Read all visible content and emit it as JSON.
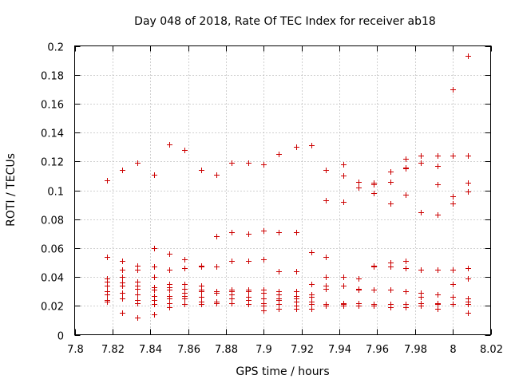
{
  "chart_data": {
    "type": "scatter",
    "title": "Day 048 of 2018, Rate Of TEC Index for receiver ab18",
    "xlabel": "GPS time / hours",
    "ylabel": "ROTI / TECUs",
    "xlim": [
      7.8,
      8.02
    ],
    "ylim": [
      0,
      0.2
    ],
    "grid": true,
    "marker": "+",
    "marker_color": "#cc0000",
    "x_ticks": [
      7.8,
      7.82,
      7.84,
      7.86,
      7.88,
      7.9,
      7.92,
      7.94,
      7.96,
      7.98,
      8.0,
      8.02
    ],
    "x_tick_labels": [
      "7.8",
      "7.82",
      "7.84",
      "7.86",
      "7.88",
      "7.9",
      "7.92",
      "7.94",
      "7.96",
      "7.98",
      "8",
      "8.02"
    ],
    "y_ticks": [
      0,
      0.02,
      0.04,
      0.06,
      0.08,
      0.1,
      0.12,
      0.14,
      0.16,
      0.18,
      0.2
    ],
    "y_tick_labels": [
      "0",
      "0.02",
      "0.04",
      "0.06",
      "0.08",
      "0.1",
      "0.12",
      "0.14",
      "0.16",
      "0.18",
      "0.2"
    ],
    "series": [
      {
        "name": "ROTI",
        "points": [
          [
            7.817,
            0.107
          ],
          [
            7.817,
            0.054
          ],
          [
            7.817,
            0.039
          ],
          [
            7.817,
            0.037
          ],
          [
            7.817,
            0.034
          ],
          [
            7.817,
            0.03
          ],
          [
            7.817,
            0.028
          ],
          [
            7.817,
            0.024
          ],
          [
            7.817,
            0.023
          ],
          [
            7.825,
            0.114
          ],
          [
            7.825,
            0.051
          ],
          [
            7.825,
            0.045
          ],
          [
            7.825,
            0.04
          ],
          [
            7.825,
            0.036
          ],
          [
            7.825,
            0.034
          ],
          [
            7.825,
            0.029
          ],
          [
            7.825,
            0.025
          ],
          [
            7.825,
            0.015
          ],
          [
            7.833,
            0.119
          ],
          [
            7.833,
            0.048
          ],
          [
            7.833,
            0.045
          ],
          [
            7.833,
            0.037
          ],
          [
            7.833,
            0.034
          ],
          [
            7.833,
            0.032
          ],
          [
            7.833,
            0.028
          ],
          [
            7.833,
            0.024
          ],
          [
            7.833,
            0.022
          ],
          [
            7.833,
            0.012
          ],
          [
            7.842,
            0.111
          ],
          [
            7.842,
            0.06
          ],
          [
            7.842,
            0.047
          ],
          [
            7.842,
            0.04
          ],
          [
            7.842,
            0.033
          ],
          [
            7.842,
            0.031
          ],
          [
            7.842,
            0.027
          ],
          [
            7.842,
            0.024
          ],
          [
            7.842,
            0.021
          ],
          [
            7.842,
            0.014
          ],
          [
            7.85,
            0.132
          ],
          [
            7.85,
            0.056
          ],
          [
            7.85,
            0.045
          ],
          [
            7.85,
            0.035
          ],
          [
            7.85,
            0.033
          ],
          [
            7.85,
            0.031
          ],
          [
            7.85,
            0.027
          ],
          [
            7.85,
            0.025
          ],
          [
            7.85,
            0.022
          ],
          [
            7.85,
            0.019
          ],
          [
            7.858,
            0.128
          ],
          [
            7.858,
            0.052
          ],
          [
            7.858,
            0.046
          ],
          [
            7.858,
            0.035
          ],
          [
            7.858,
            0.032
          ],
          [
            7.858,
            0.029
          ],
          [
            7.858,
            0.027
          ],
          [
            7.858,
            0.025
          ],
          [
            7.858,
            0.021
          ],
          [
            7.867,
            0.114
          ],
          [
            7.867,
            0.048
          ],
          [
            7.867,
            0.047
          ],
          [
            7.867,
            0.034
          ],
          [
            7.867,
            0.031
          ],
          [
            7.867,
            0.03
          ],
          [
            7.867,
            0.026
          ],
          [
            7.867,
            0.023
          ],
          [
            7.867,
            0.021
          ],
          [
            7.875,
            0.111
          ],
          [
            7.875,
            0.068
          ],
          [
            7.875,
            0.047
          ],
          [
            7.875,
            0.03
          ],
          [
            7.875,
            0.029
          ],
          [
            7.875,
            0.023
          ],
          [
            7.875,
            0.022
          ],
          [
            7.883,
            0.119
          ],
          [
            7.883,
            0.071
          ],
          [
            7.883,
            0.051
          ],
          [
            7.883,
            0.031
          ],
          [
            7.883,
            0.03
          ],
          [
            7.883,
            0.028
          ],
          [
            7.883,
            0.025
          ],
          [
            7.883,
            0.022
          ],
          [
            7.892,
            0.119
          ],
          [
            7.892,
            0.07
          ],
          [
            7.892,
            0.051
          ],
          [
            7.892,
            0.031
          ],
          [
            7.892,
            0.03
          ],
          [
            7.892,
            0.026
          ],
          [
            7.892,
            0.024
          ],
          [
            7.892,
            0.021
          ],
          [
            7.9,
            0.118
          ],
          [
            7.9,
            0.072
          ],
          [
            7.9,
            0.052
          ],
          [
            7.9,
            0.031
          ],
          [
            7.9,
            0.029
          ],
          [
            7.9,
            0.025
          ],
          [
            7.9,
            0.022
          ],
          [
            7.9,
            0.02
          ],
          [
            7.9,
            0.017
          ],
          [
            7.908,
            0.125
          ],
          [
            7.908,
            0.071
          ],
          [
            7.908,
            0.044
          ],
          [
            7.908,
            0.03
          ],
          [
            7.908,
            0.028
          ],
          [
            7.908,
            0.025
          ],
          [
            7.908,
            0.024
          ],
          [
            7.908,
            0.021
          ],
          [
            7.908,
            0.018
          ],
          [
            7.917,
            0.13
          ],
          [
            7.917,
            0.071
          ],
          [
            7.917,
            0.044
          ],
          [
            7.917,
            0.03
          ],
          [
            7.917,
            0.027
          ],
          [
            7.917,
            0.025
          ],
          [
            7.917,
            0.023
          ],
          [
            7.917,
            0.02
          ],
          [
            7.917,
            0.018
          ],
          [
            7.925,
            0.131
          ],
          [
            7.925,
            0.057
          ],
          [
            7.925,
            0.035
          ],
          [
            7.925,
            0.028
          ],
          [
            7.925,
            0.026
          ],
          [
            7.925,
            0.023
          ],
          [
            7.925,
            0.021
          ],
          [
            7.925,
            0.018
          ],
          [
            7.933,
            0.114
          ],
          [
            7.933,
            0.093
          ],
          [
            7.933,
            0.054
          ],
          [
            7.933,
            0.04
          ],
          [
            7.933,
            0.034
          ],
          [
            7.933,
            0.032
          ],
          [
            7.933,
            0.021
          ],
          [
            7.933,
            0.02
          ],
          [
            7.942,
            0.118
          ],
          [
            7.942,
            0.11
          ],
          [
            7.942,
            0.092
          ],
          [
            7.942,
            0.04
          ],
          [
            7.942,
            0.034
          ],
          [
            7.942,
            0.022
          ],
          [
            7.942,
            0.021
          ],
          [
            7.942,
            0.02
          ],
          [
            7.95,
            0.106
          ],
          [
            7.95,
            0.102
          ],
          [
            7.95,
            0.039
          ],
          [
            7.95,
            0.032
          ],
          [
            7.95,
            0.031
          ],
          [
            7.95,
            0.022
          ],
          [
            7.95,
            0.02
          ],
          [
            7.958,
            0.105
          ],
          [
            7.958,
            0.104
          ],
          [
            7.958,
            0.098
          ],
          [
            7.958,
            0.048
          ],
          [
            7.958,
            0.047
          ],
          [
            7.958,
            0.031
          ],
          [
            7.958,
            0.021
          ],
          [
            7.958,
            0.02
          ],
          [
            7.967,
            0.113
          ],
          [
            7.967,
            0.106
          ],
          [
            7.967,
            0.091
          ],
          [
            7.967,
            0.05
          ],
          [
            7.967,
            0.047
          ],
          [
            7.967,
            0.031
          ],
          [
            7.967,
            0.021
          ],
          [
            7.967,
            0.019
          ],
          [
            7.975,
            0.122
          ],
          [
            7.975,
            0.116
          ],
          [
            7.975,
            0.115
          ],
          [
            7.975,
            0.097
          ],
          [
            7.975,
            0.051
          ],
          [
            7.975,
            0.046
          ],
          [
            7.975,
            0.03
          ],
          [
            7.975,
            0.021
          ],
          [
            7.975,
            0.019
          ],
          [
            7.983,
            0.124
          ],
          [
            7.983,
            0.119
          ],
          [
            7.983,
            0.085
          ],
          [
            7.983,
            0.045
          ],
          [
            7.983,
            0.029
          ],
          [
            7.983,
            0.026
          ],
          [
            7.983,
            0.022
          ],
          [
            7.983,
            0.02
          ],
          [
            7.992,
            0.124
          ],
          [
            7.992,
            0.117
          ],
          [
            7.992,
            0.104
          ],
          [
            7.992,
            0.083
          ],
          [
            7.992,
            0.045
          ],
          [
            7.992,
            0.028
          ],
          [
            7.992,
            0.022
          ],
          [
            7.992,
            0.021
          ],
          [
            7.992,
            0.018
          ],
          [
            8.0,
            0.17
          ],
          [
            8.0,
            0.124
          ],
          [
            8.0,
            0.096
          ],
          [
            8.0,
            0.091
          ],
          [
            8.0,
            0.045
          ],
          [
            8.0,
            0.035
          ],
          [
            8.0,
            0.026
          ],
          [
            8.0,
            0.021
          ],
          [
            8.008,
            0.193
          ],
          [
            8.008,
            0.124
          ],
          [
            8.008,
            0.105
          ],
          [
            8.008,
            0.099
          ],
          [
            8.008,
            0.046
          ],
          [
            8.008,
            0.039
          ],
          [
            8.008,
            0.025
          ],
          [
            8.008,
            0.023
          ],
          [
            8.008,
            0.021
          ],
          [
            8.008,
            0.015
          ]
        ]
      }
    ]
  }
}
